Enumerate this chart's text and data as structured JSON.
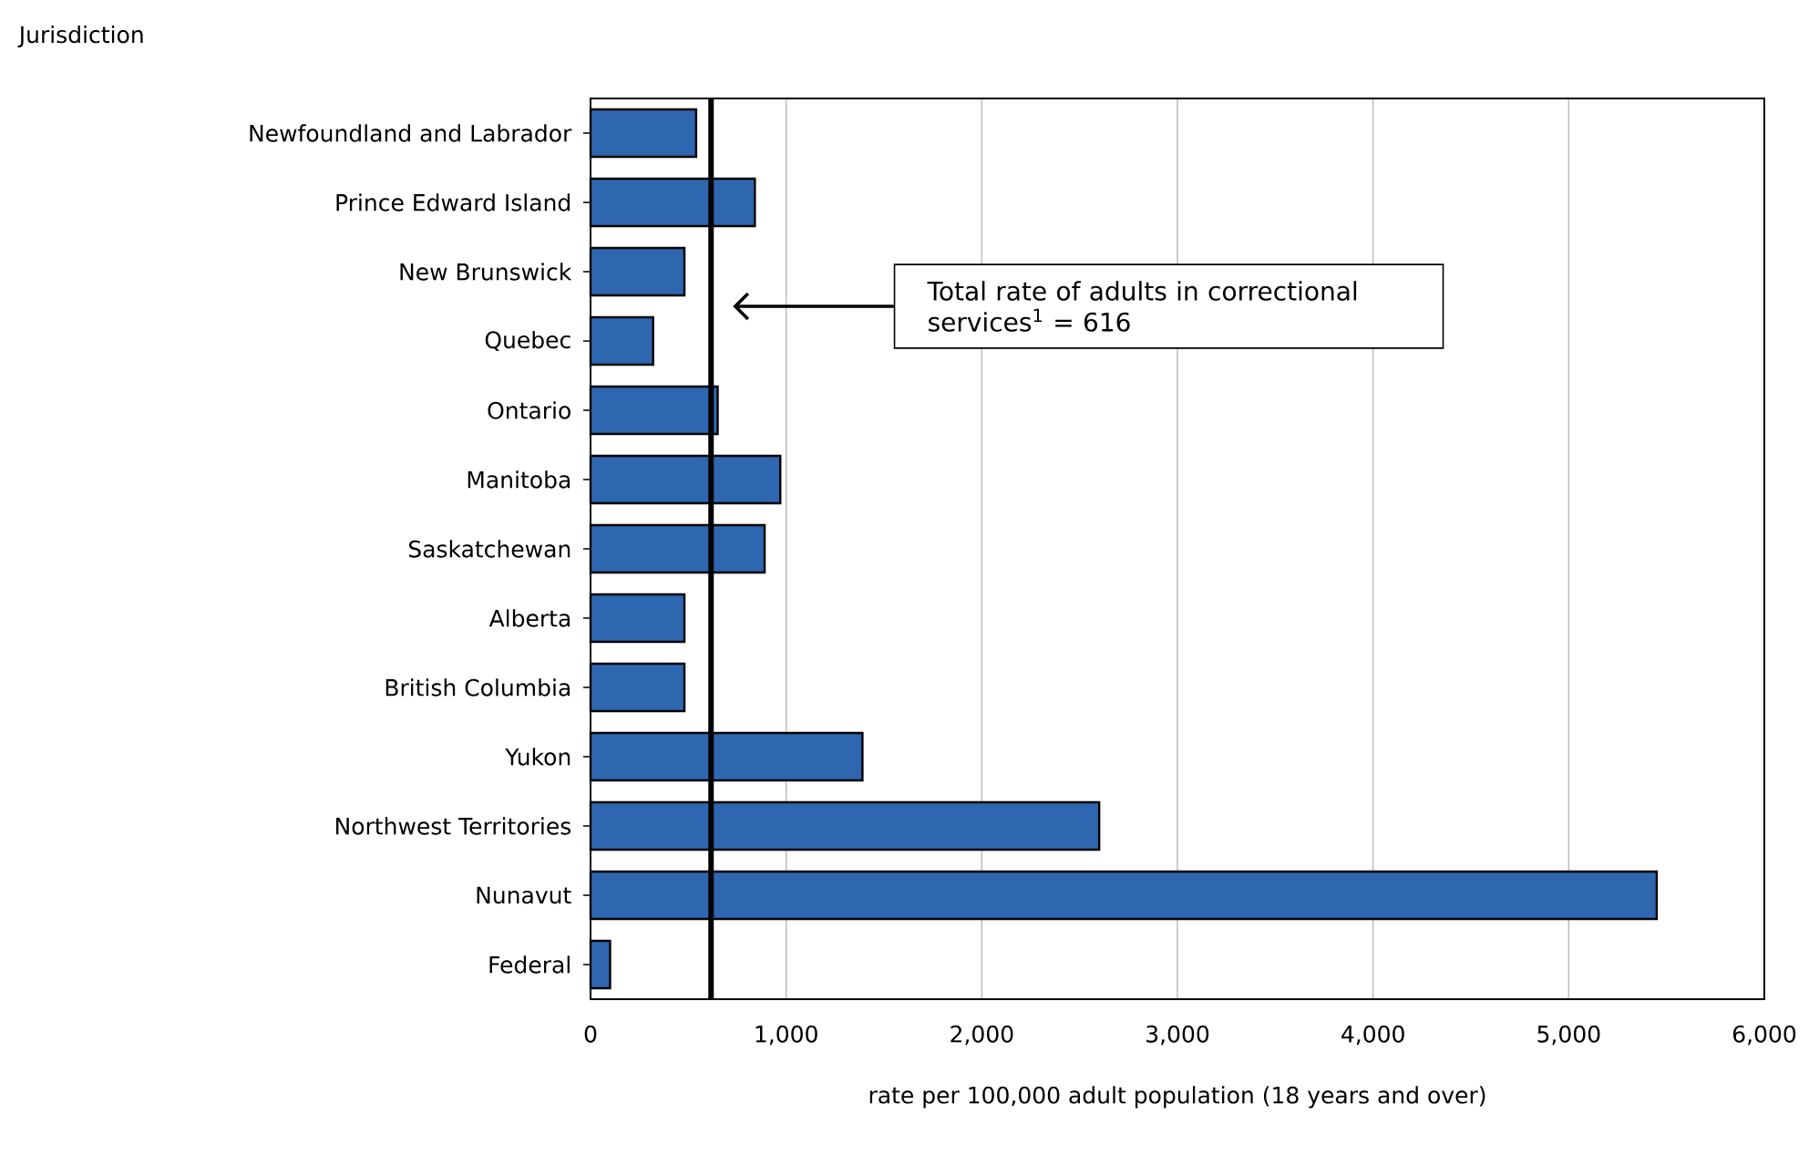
{
  "chart_data": {
    "type": "bar",
    "orientation": "horizontal",
    "annotations": [
      "Jurisdiction"
    ],
    "xlabel": "rate per 100,000 adult population (18 years and over)",
    "categories": [
      "Newfoundland and Labrador",
      "Prince Edward Island",
      "New Brunswick",
      "Quebec",
      "Ontario",
      "Manitoba",
      "Saskatchewan",
      "Alberta",
      "British Columbia",
      "Yukon",
      "Northwest Territories",
      "Nunavut",
      "Federal"
    ],
    "values": [
      540,
      840,
      480,
      320,
      650,
      970,
      890,
      480,
      480,
      1390,
      2600,
      5450,
      100
    ],
    "color": "#2e66b0",
    "xlim": [
      0,
      6000
    ],
    "xticks": [
      0,
      {
        "value": 1000,
        "label": "1,000"
      },
      {
        "value": 2000,
        "label": "2,000"
      },
      {
        "value": 3000,
        "label": "3,000"
      },
      {
        "value": 4000,
        "label": "4,000"
      },
      {
        "value": 5000,
        "label": "5,000"
      },
      {
        "value": 6000,
        "label": "6,000"
      }
    ],
    "grid": "x",
    "ref_lines": [
      {
        "axis": "x",
        "value": 616,
        "label": "Total rate of adults in correctional services$^{1}$ = 616",
        "color": "#000000"
      }
    ]
  }
}
